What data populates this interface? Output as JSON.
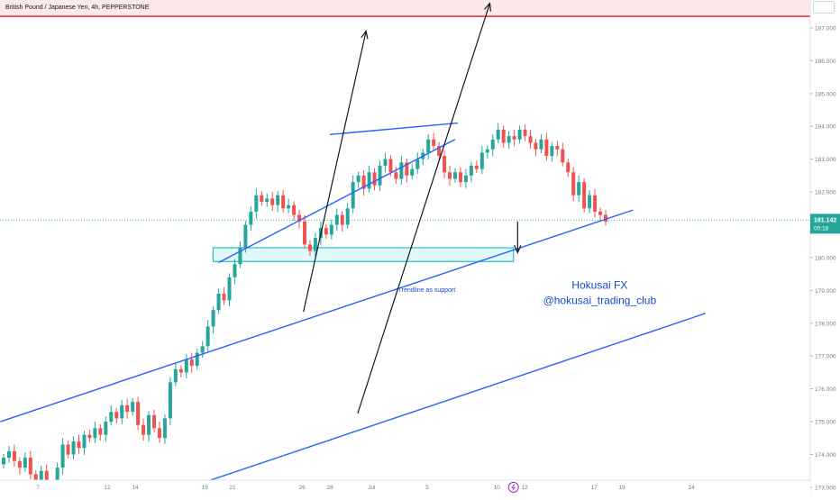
{
  "header": {
    "symbol_title": "British Pound / Japanese Yen, 4h, PEPPERSTONE"
  },
  "colors": {
    "up": "#26a69a",
    "down": "#ef5350",
    "trend": "#2962ff",
    "zone_fill": "#c8f3f4",
    "zone_stroke": "#22c1c9",
    "resistance_line": "#f23645",
    "resistance_fill": "#fde9ea",
    "annotation_text": "#1848cc",
    "arrow": "#131722",
    "axis_text": "#787b86",
    "price_tag_bg": "#26a69a",
    "event_icon": "#9c27b0"
  },
  "chart_data": {
    "type": "candlestick",
    "symbol": "British Pound / Japanese Yen",
    "timeframe": "4h",
    "exchange": "PEPPERSTONE",
    "ylim": [
      172.75,
      187.85
    ],
    "yticks": [
      "173.000",
      "174.000",
      "175.000",
      "176.000",
      "177.000",
      "178.000",
      "179.000",
      "180.000",
      "181.000",
      "182.000",
      "183.000",
      "184.000",
      "185.000",
      "186.000",
      "187.000"
    ],
    "xticks": [
      {
        "label": "7",
        "day": 7
      },
      {
        "label": "12",
        "day": 12
      },
      {
        "label": "14",
        "day": 14
      },
      {
        "label": "19",
        "day": 19
      },
      {
        "label": "21",
        "day": 21
      },
      {
        "label": "26",
        "day": 26
      },
      {
        "label": "28",
        "day": 28
      },
      {
        "label": "Jul",
        "day": 31
      },
      {
        "label": "5",
        "day": 35
      },
      {
        "label": "10",
        "day": 40
      },
      {
        "label": "12",
        "day": 42
      },
      {
        "label": "17",
        "day": 47
      },
      {
        "label": "19",
        "day": 49
      },
      {
        "label": "24",
        "day": 54
      }
    ],
    "current_price": {
      "value": 181.142,
      "label": "181.142",
      "countdown": "00:18"
    },
    "resistance_level": 187.35,
    "zone": {
      "x_from": 19.6,
      "x_to": 41.2,
      "y_from": 179.88,
      "y_to": 180.3
    },
    "candle_closes": [
      173.9,
      174.1,
      173.8,
      173.6,
      173.9,
      173.4,
      173.2,
      173.5,
      173.1,
      173.0,
      173.6,
      174.3,
      174.0,
      174.4,
      174.2,
      174.6,
      174.5,
      174.8,
      174.6,
      175.0,
      175.3,
      175.1,
      175.5,
      175.3,
      175.6,
      174.9,
      174.6,
      175.2,
      174.8,
      174.5,
      175.1,
      176.2,
      176.6,
      176.5,
      176.9,
      176.7,
      177.1,
      177.3,
      177.9,
      178.4,
      178.9,
      178.7,
      179.4,
      179.8,
      180.3,
      181.0,
      181.4,
      181.9,
      181.7,
      181.8,
      181.6,
      181.9,
      181.5,
      181.6,
      181.3,
      181.1,
      180.4,
      180.2,
      180.6,
      180.9,
      180.7,
      181.0,
      181.3,
      181.0,
      181.5,
      182.3,
      182.5,
      182.1,
      182.6,
      182.2,
      182.8,
      183.0,
      182.6,
      182.4,
      182.9,
      182.5,
      182.7,
      183.0,
      183.2,
      183.6,
      183.4,
      183.1,
      182.6,
      182.4,
      182.6,
      182.3,
      182.5,
      182.8,
      182.7,
      183.2,
      183.3,
      183.6,
      183.9,
      183.5,
      183.7,
      183.6,
      183.9,
      183.7,
      183.5,
      183.3,
      183.6,
      183.1,
      183.4,
      183.3,
      182.9,
      182.6,
      181.9,
      182.3,
      181.5,
      181.9,
      181.4,
      181.3,
      181.1
    ],
    "trendlines": [
      {
        "x1": 4.3,
        "y1": 175.0,
        "x2": 49.8,
        "y2": 181.45
      },
      {
        "x1": 15.8,
        "y1": 172.7,
        "x2": 55.0,
        "y2": 178.3
      },
      {
        "x1": 20.0,
        "y1": 179.85,
        "x2": 37.0,
        "y2": 183.6
      },
      {
        "x1": 28.0,
        "y1": 183.75,
        "x2": 37.2,
        "y2": 184.1
      }
    ],
    "arrows": [
      {
        "x1": 26.1,
        "y1": 178.35,
        "x2": 30.6,
        "y2": 186.9
      },
      {
        "x1": 30.0,
        "y1": 175.25,
        "x2": 39.5,
        "y2": 187.75
      },
      {
        "x1": 41.5,
        "y1": 181.1,
        "x2": 41.5,
        "y2": 180.15
      }
    ],
    "annotations": [
      {
        "text": "Trendline as support",
        "x": 32.9,
        "y": 178.95
      },
      {
        "text": "Hokusai FX",
        "x": 47.4,
        "y": 179.05
      },
      {
        "text": "@hokusai_trading_club",
        "x": 47.4,
        "y": 178.58
      }
    ],
    "event_marker": {
      "x": 41.2,
      "y": 173.0
    }
  }
}
